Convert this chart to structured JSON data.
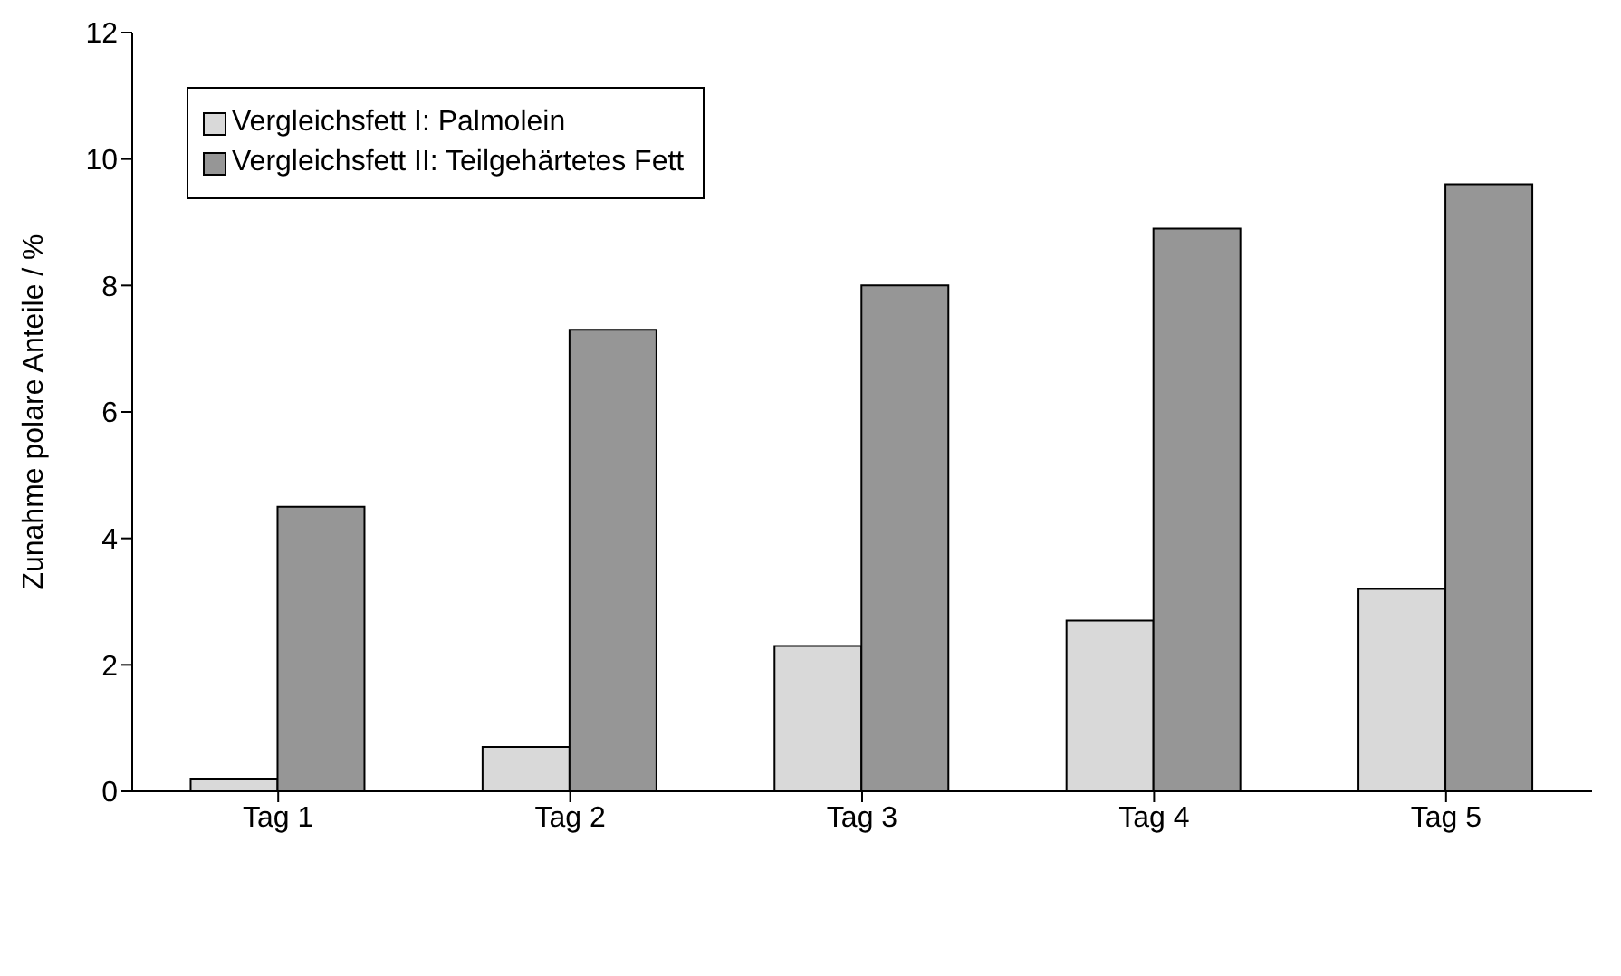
{
  "chart_data": {
    "type": "bar",
    "ylabel": "Zunahme polare Anteile / %",
    "categories": [
      "Tag 1",
      "Tag 2",
      "Tag 3",
      "Tag 4",
      "Tag 5"
    ],
    "series": [
      {
        "name": "Vergleichsfett I: Palmolein",
        "color": "#d9d9d9",
        "values": [
          0.2,
          0.7,
          2.3,
          2.7,
          3.2
        ]
      },
      {
        "name": "Vergleichsfett II: Teilgehärtetes Fett",
        "color": "#969696",
        "values": [
          4.5,
          7.3,
          8.0,
          8.9,
          9.6
        ]
      }
    ],
    "ylim": [
      0,
      12
    ],
    "yticks": [
      0,
      2,
      4,
      6,
      8,
      10,
      12
    ],
    "grid": false,
    "legend": "top left"
  }
}
